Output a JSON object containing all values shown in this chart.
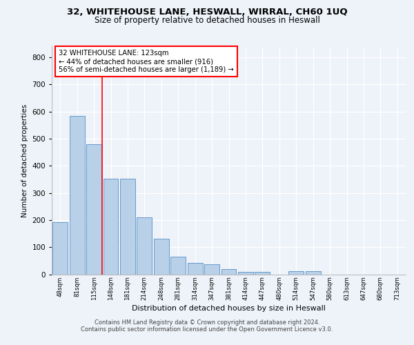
{
  "title1": "32, WHITEHOUSE LANE, HESWALL, WIRRAL, CH60 1UQ",
  "title2": "Size of property relative to detached houses in Heswall",
  "xlabel": "Distribution of detached houses by size in Heswall",
  "ylabel": "Number of detached properties",
  "categories": [
    "48sqm",
    "81sqm",
    "115sqm",
    "148sqm",
    "181sqm",
    "214sqm",
    "248sqm",
    "281sqm",
    "314sqm",
    "347sqm",
    "381sqm",
    "414sqm",
    "447sqm",
    "480sqm",
    "514sqm",
    "547sqm",
    "580sqm",
    "613sqm",
    "647sqm",
    "680sqm",
    "713sqm"
  ],
  "values": [
    193,
    585,
    480,
    352,
    352,
    211,
    130,
    65,
    43,
    36,
    18,
    8,
    8,
    0,
    11,
    11,
    0,
    0,
    0,
    0,
    0
  ],
  "bar_color": "#b8d0e8",
  "bar_edge_color": "#6699cc",
  "vline_x": 2.5,
  "vline_color": "red",
  "annotation_line1": "32 WHITEHOUSE LANE: 123sqm",
  "annotation_line2": "← 44% of detached houses are smaller (916)",
  "annotation_line3": "56% of semi-detached houses are larger (1,189) →",
  "annotation_box_color": "white",
  "annotation_box_edge_color": "red",
  "ylim": [
    0,
    840
  ],
  "yticks": [
    0,
    100,
    200,
    300,
    400,
    500,
    600,
    700,
    800
  ],
  "footer1": "Contains HM Land Registry data © Crown copyright and database right 2024.",
  "footer2": "Contains public sector information licensed under the Open Government Licence v3.0.",
  "bg_color": "#eef3f9",
  "plot_bg_color": "#eef3f9"
}
